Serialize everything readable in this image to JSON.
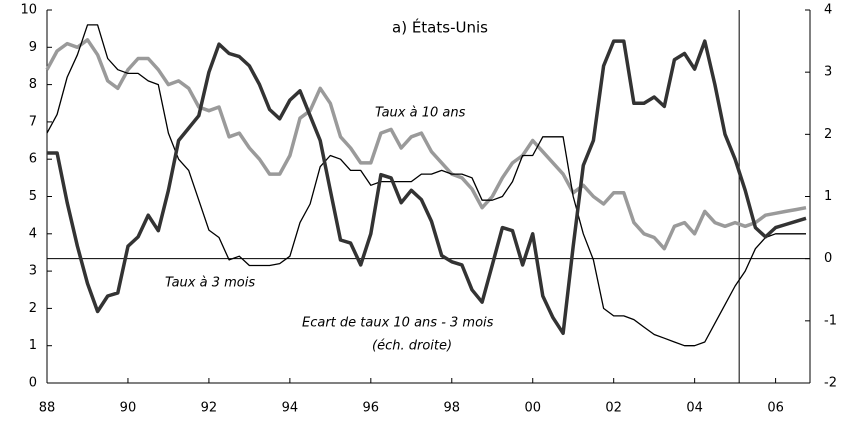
{
  "chart_data": {
    "type": "line",
    "title": "a) États-Unis",
    "x": [
      1988,
      1988.25,
      1988.5,
      1988.75,
      1989,
      1989.25,
      1989.5,
      1989.75,
      1990,
      1990.25,
      1990.5,
      1990.75,
      1991,
      1991.25,
      1991.5,
      1991.75,
      1992,
      1992.25,
      1992.5,
      1992.75,
      1993,
      1993.25,
      1993.5,
      1993.75,
      1994,
      1994.25,
      1994.5,
      1994.75,
      1995,
      1995.25,
      1995.5,
      1995.75,
      1996,
      1996.25,
      1996.5,
      1996.75,
      1997,
      1997.25,
      1997.5,
      1997.75,
      1998,
      1998.25,
      1998.5,
      1998.75,
      1999,
      1999.25,
      1999.5,
      1999.75,
      2000,
      2000.25,
      2000.5,
      2000.75,
      2001,
      2001.25,
      2001.5,
      2001.75,
      2002,
      2002.25,
      2002.5,
      2002.75,
      2003,
      2003.25,
      2003.5,
      2003.75,
      2004,
      2004.25,
      2004.5,
      2004.75,
      2005,
      2005.25,
      2005.5,
      2005.75,
      2006,
      2006.25,
      2006.5,
      2006.75
    ],
    "series": [
      {
        "name": "Taux à 10 ans",
        "color": "#9a9a9a",
        "axis": "y",
        "values": [
          8.4,
          8.9,
          9.1,
          9.0,
          9.2,
          8.8,
          8.1,
          7.9,
          8.4,
          8.7,
          8.7,
          8.4,
          8.0,
          8.1,
          7.9,
          7.4,
          7.3,
          7.4,
          6.6,
          6.7,
          6.3,
          6.0,
          5.6,
          5.6,
          6.1,
          7.1,
          7.3,
          7.9,
          7.5,
          6.6,
          6.3,
          5.9,
          5.9,
          6.7,
          6.8,
          6.3,
          6.6,
          6.7,
          6.2,
          5.9,
          5.6,
          5.5,
          5.2,
          4.7,
          5.0,
          5.5,
          5.9,
          6.1,
          6.5,
          6.2,
          5.9,
          5.6,
          5.1,
          5.3,
          5.0,
          4.8,
          5.1,
          5.1,
          4.3,
          4.0,
          3.9,
          3.6,
          4.2,
          4.3,
          4.0,
          4.6,
          4.3,
          4.2,
          4.3,
          4.2,
          4.3,
          4.5,
          4.55,
          4.6,
          4.65,
          4.7
        ]
      },
      {
        "name": "Taux à 3 mois",
        "color": "#000000",
        "axis": "y",
        "values": [
          6.7,
          7.2,
          8.2,
          8.8,
          9.6,
          9.6,
          8.7,
          8.4,
          8.3,
          8.3,
          8.1,
          8.0,
          6.7,
          6.0,
          5.7,
          4.9,
          4.1,
          3.9,
          3.3,
          3.4,
          3.15,
          3.15,
          3.15,
          3.2,
          3.4,
          4.3,
          4.8,
          5.8,
          6.1,
          6.0,
          5.7,
          5.7,
          5.3,
          5.4,
          5.4,
          5.4,
          5.4,
          5.6,
          5.6,
          5.7,
          5.6,
          5.6,
          5.5,
          4.9,
          4.9,
          5.0,
          5.4,
          6.1,
          6.1,
          6.6,
          6.6,
          6.6,
          5.0,
          4.0,
          3.3,
          2.0,
          1.8,
          1.8,
          1.7,
          1.5,
          1.3,
          1.2,
          1.1,
          1.0,
          1.0,
          1.1,
          1.6,
          2.1,
          2.6,
          3.0,
          3.6,
          3.9,
          4.0,
          4.0,
          4.0,
          4.0
        ]
      },
      {
        "name": "Ecart de taux 10 ans - 3 mois",
        "color": "#333333",
        "axis": "y2",
        "values": [
          1.7,
          1.7,
          0.9,
          0.2,
          -0.4,
          -0.85,
          -0.6,
          -0.55,
          0.2,
          0.35,
          0.7,
          0.45,
          1.1,
          1.9,
          2.1,
          2.3,
          3.0,
          3.45,
          3.3,
          3.25,
          3.1,
          2.8,
          2.4,
          2.25,
          2.55,
          2.7,
          2.3,
          1.9,
          1.1,
          0.3,
          0.25,
          -0.1,
          0.4,
          1.35,
          1.3,
          0.9,
          1.1,
          0.95,
          0.6,
          0.05,
          -0.05,
          -0.1,
          -0.5,
          -0.7,
          -0.1,
          0.5,
          0.45,
          -0.1,
          0.4,
          -0.6,
          -0.95,
          -1.2,
          0.2,
          1.5,
          1.9,
          3.1,
          3.5,
          3.5,
          2.5,
          2.5,
          2.6,
          2.45,
          3.2,
          3.3,
          3.05,
          3.5,
          2.8,
          2.0,
          1.6,
          1.1,
          0.5,
          0.35,
          0.5,
          0.55,
          0.6,
          0.65
        ]
      }
    ],
    "annotation": "(éch. droite)",
    "vertical_line": 2005.1,
    "xlim": [
      1988,
      2006.85
    ],
    "xticks": [
      {
        "value": 1988,
        "label": "88"
      },
      {
        "value": 1990,
        "label": "90"
      },
      {
        "value": 1992,
        "label": "92"
      },
      {
        "value": 1994,
        "label": "94"
      },
      {
        "value": 1996,
        "label": "96"
      },
      {
        "value": 1998,
        "label": "98"
      },
      {
        "value": 2000,
        "label": "00"
      },
      {
        "value": 2002,
        "label": "02"
      },
      {
        "value": 2004,
        "label": "04"
      },
      {
        "value": 2006,
        "label": "06"
      }
    ],
    "ylim": [
      0,
      10
    ],
    "yticks": [
      0,
      1,
      2,
      3,
      4,
      5,
      6,
      7,
      8,
      9,
      10
    ],
    "y2lim": [
      -2,
      4
    ],
    "y2ticks": [
      -2,
      -1,
      0,
      1,
      2,
      3,
      4
    ]
  }
}
